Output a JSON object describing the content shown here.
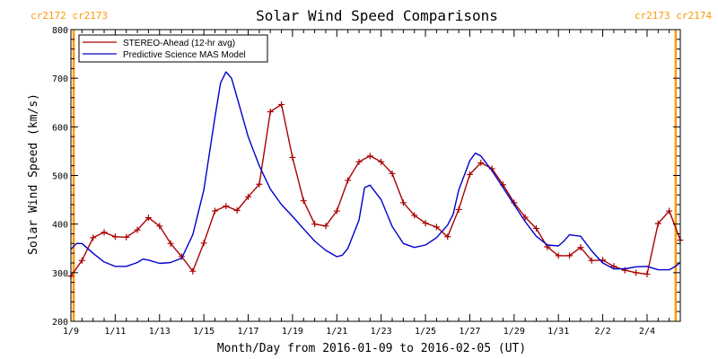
{
  "chart_data": {
    "type": "line",
    "title": "Solar Wind Speed Comparisons",
    "xlabel": "Month/Day from 2016-01-09 to 2016-02-05 (UT)",
    "ylabel": "Solar Wind Speed (km/s)",
    "ylim": [
      200,
      800
    ],
    "yticks": [
      200,
      300,
      400,
      500,
      600,
      700,
      800
    ],
    "xlim": [
      "2016-01-09",
      "2016-02-05T12:00"
    ],
    "xtick_labels": [
      "1/9",
      "1/11",
      "1/13",
      "1/15",
      "1/17",
      "1/19",
      "1/21",
      "1/23",
      "1/25",
      "1/27",
      "1/29",
      "1/31",
      "2/2",
      "2/4"
    ],
    "carrington_labels": {
      "left": "cr2172 cr2173",
      "right": "cr2173 cr2174"
    },
    "carrington_boundaries": [
      "2016-01-09T03:00",
      "2016-02-05T07:00"
    ],
    "legend_position": "top-left",
    "colors": {
      "stereo": "#aa0000",
      "model": "#0000cc",
      "boundary": "#ff9900"
    },
    "series": [
      {
        "name": "STEREO-Ahead (12-hr avg)",
        "marker": "plus",
        "points": [
          [
            "2016-01-09T00:00",
            293
          ],
          [
            "2016-01-09T12:00",
            325
          ],
          [
            "2016-01-10T00:00",
            372
          ],
          [
            "2016-01-10T12:00",
            383
          ],
          [
            "2016-01-11T00:00",
            374
          ],
          [
            "2016-01-11T12:00",
            373
          ],
          [
            "2016-01-12T00:00",
            388
          ],
          [
            "2016-01-12T12:00",
            413
          ],
          [
            "2016-01-13T00:00",
            396
          ],
          [
            "2016-01-13T12:00",
            360
          ],
          [
            "2016-01-14T00:00",
            333
          ],
          [
            "2016-01-14T12:00",
            303
          ],
          [
            "2016-01-15T00:00",
            361
          ],
          [
            "2016-01-15T12:00",
            427
          ],
          [
            "2016-01-16T00:00",
            437
          ],
          [
            "2016-01-16T12:00",
            428
          ],
          [
            "2016-01-17T00:00",
            456
          ],
          [
            "2016-01-17T12:00",
            482
          ],
          [
            "2016-01-18T00:00",
            631
          ],
          [
            "2016-01-18T12:00",
            646
          ],
          [
            "2016-01-19T00:00",
            537
          ],
          [
            "2016-01-19T12:00",
            448
          ],
          [
            "2016-01-20T00:00",
            400
          ],
          [
            "2016-01-20T12:00",
            396
          ],
          [
            "2016-01-21T00:00",
            427
          ],
          [
            "2016-01-21T12:00",
            490
          ],
          [
            "2016-01-22T00:00",
            528
          ],
          [
            "2016-01-22T12:00",
            540
          ],
          [
            "2016-01-23T00:00",
            528
          ],
          [
            "2016-01-23T12:00",
            504
          ],
          [
            "2016-01-24T00:00",
            444
          ],
          [
            "2016-01-24T12:00",
            418
          ],
          [
            "2016-01-25T00:00",
            402
          ],
          [
            "2016-01-25T12:00",
            394
          ],
          [
            "2016-01-26T00:00",
            374
          ],
          [
            "2016-01-26T12:00",
            430
          ],
          [
            "2016-01-27T00:00",
            502
          ],
          [
            "2016-01-27T12:00",
            526
          ],
          [
            "2016-01-28T00:00",
            514
          ],
          [
            "2016-01-28T12:00",
            481
          ],
          [
            "2016-01-29T00:00",
            444
          ],
          [
            "2016-01-29T12:00",
            414
          ],
          [
            "2016-01-30T00:00",
            391
          ],
          [
            "2016-01-30T12:00",
            353
          ],
          [
            "2016-01-31T00:00",
            335
          ],
          [
            "2016-01-31T12:00",
            335
          ],
          [
            "2016-02-01T00:00",
            352
          ],
          [
            "2016-02-01T12:00",
            325
          ],
          [
            "2016-02-02T00:00",
            326
          ],
          [
            "2016-02-02T12:00",
            313
          ],
          [
            "2016-02-03T00:00",
            305
          ],
          [
            "2016-02-03T12:00",
            300
          ],
          [
            "2016-02-04T00:00",
            297
          ],
          [
            "2016-02-04T12:00",
            401
          ],
          [
            "2016-02-05T00:00",
            427
          ],
          [
            "2016-02-05T12:00",
            367
          ]
        ]
      },
      {
        "name": "Predictive Science MAS Model",
        "marker": "none",
        "points": [
          [
            "2016-01-09T00:00",
            348
          ],
          [
            "2016-01-09T06:00",
            360
          ],
          [
            "2016-01-09T12:00",
            360
          ],
          [
            "2016-01-10T00:00",
            340
          ],
          [
            "2016-01-10T12:00",
            322
          ],
          [
            "2016-01-11T00:00",
            313
          ],
          [
            "2016-01-11T12:00",
            313
          ],
          [
            "2016-01-12T00:00",
            321
          ],
          [
            "2016-01-12T06:00",
            328
          ],
          [
            "2016-01-12T12:00",
            326
          ],
          [
            "2016-01-13T00:00",
            319
          ],
          [
            "2016-01-13T12:00",
            321
          ],
          [
            "2016-01-14T00:00",
            330
          ],
          [
            "2016-01-14T12:00",
            378
          ],
          [
            "2016-01-15T00:00",
            470
          ],
          [
            "2016-01-15T12:00",
            620
          ],
          [
            "2016-01-15T18:00",
            690
          ],
          [
            "2016-01-16T00:00",
            713
          ],
          [
            "2016-01-16T06:00",
            700
          ],
          [
            "2016-01-16T12:00",
            660
          ],
          [
            "2016-01-17T00:00",
            580
          ],
          [
            "2016-01-17T12:00",
            520
          ],
          [
            "2016-01-18T00:00",
            472
          ],
          [
            "2016-01-18T12:00",
            440
          ],
          [
            "2016-01-19T00:00",
            416
          ],
          [
            "2016-01-19T12:00",
            390
          ],
          [
            "2016-01-20T00:00",
            365
          ],
          [
            "2016-01-20T12:00",
            346
          ],
          [
            "2016-01-21T00:00",
            333
          ],
          [
            "2016-01-21T06:00",
            336
          ],
          [
            "2016-01-21T12:00",
            350
          ],
          [
            "2016-01-22T00:00",
            408
          ],
          [
            "2016-01-22T06:00",
            475
          ],
          [
            "2016-01-22T12:00",
            480
          ],
          [
            "2016-01-23T00:00",
            450
          ],
          [
            "2016-01-23T12:00",
            395
          ],
          [
            "2016-01-24T00:00",
            360
          ],
          [
            "2016-01-24T12:00",
            352
          ],
          [
            "2016-01-25T00:00",
            357
          ],
          [
            "2016-01-25T12:00",
            372
          ],
          [
            "2016-01-26T00:00",
            398
          ],
          [
            "2016-01-26T06:00",
            420
          ],
          [
            "2016-01-26T12:00",
            470
          ],
          [
            "2016-01-27T00:00",
            530
          ],
          [
            "2016-01-27T06:00",
            546
          ],
          [
            "2016-01-27T12:00",
            540
          ],
          [
            "2016-01-28T00:00",
            510
          ],
          [
            "2016-01-28T12:00",
            475
          ],
          [
            "2016-01-29T00:00",
            440
          ],
          [
            "2016-01-29T12:00",
            405
          ],
          [
            "2016-01-30T00:00",
            375
          ],
          [
            "2016-01-30T12:00",
            357
          ],
          [
            "2016-01-31T00:00",
            355
          ],
          [
            "2016-01-31T06:00",
            365
          ],
          [
            "2016-01-31T12:00",
            378
          ],
          [
            "2016-02-01T00:00",
            375
          ],
          [
            "2016-02-01T12:00",
            345
          ],
          [
            "2016-02-02T00:00",
            320
          ],
          [
            "2016-02-02T12:00",
            308
          ],
          [
            "2016-02-03T00:00",
            308
          ],
          [
            "2016-02-03T12:00",
            312
          ],
          [
            "2016-02-04T00:00",
            313
          ],
          [
            "2016-02-04T12:00",
            306
          ],
          [
            "2016-02-05T00:00",
            306
          ],
          [
            "2016-02-05T06:00",
            312
          ],
          [
            "2016-02-05T12:00",
            321
          ]
        ]
      }
    ]
  }
}
